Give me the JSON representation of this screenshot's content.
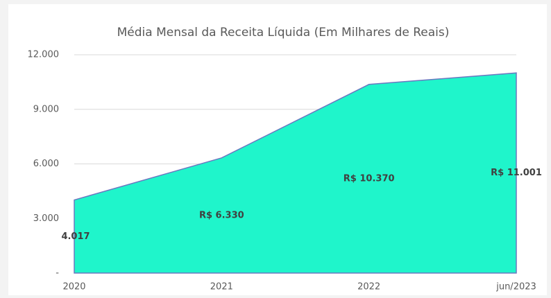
{
  "chart_data": {
    "type": "area",
    "title": "Média Mensal da Receita Líquida (Em Milhares de Reais)",
    "categories": [
      "2020",
      "2021",
      "2022",
      "jun/2023"
    ],
    "values": [
      4017,
      6330,
      10370,
      11001
    ],
    "value_labels": [
      "4.017",
      "R$ 6.330",
      "R$ 10.370",
      "R$ 11.001"
    ],
    "color": "#1ff5cb",
    "line_color": "#6a78c0",
    "ylim": [
      0,
      12000
    ],
    "yticks": [
      {
        "value": 0,
        "label": "-"
      },
      {
        "value": 3000,
        "label": "3.000"
      },
      {
        "value": 6000,
        "label": "6.000"
      },
      {
        "value": 9000,
        "label": "9.000"
      },
      {
        "value": 12000,
        "label": "12.000"
      }
    ],
    "grid": true
  }
}
